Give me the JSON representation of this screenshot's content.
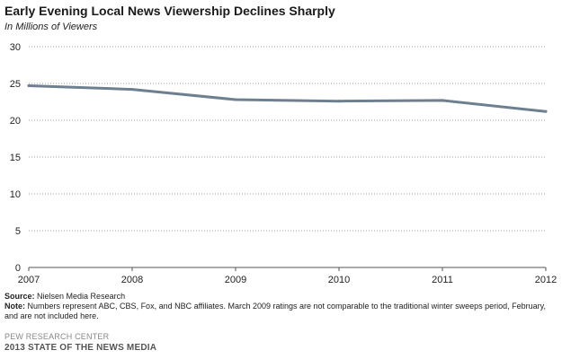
{
  "header": {
    "title": "Early Evening Local News Viewership Declines Sharply",
    "subtitle": "In Millions of Viewers"
  },
  "chart_data": {
    "type": "line",
    "categories": [
      "2007",
      "2008",
      "2009",
      "2010",
      "2011",
      "2012"
    ],
    "series": [
      {
        "values": [
          24.7,
          24.2,
          22.8,
          22.6,
          22.7,
          21.2
        ],
        "color": "#6e8090"
      }
    ],
    "ylim": [
      0,
      30
    ],
    "yticks": [
      0,
      5,
      10,
      15,
      20,
      25,
      30
    ],
    "grid": "horizontal-dotted"
  },
  "notes": {
    "source_label": "Source:",
    "source_text": "Nielsen Media Research",
    "note_label": "Note:",
    "note_text": "Numbers represent ABC, CBS, Fox, and NBC affiliates. March 2009 ratings are not comparable to the traditional winter sweeps period, February, and are not included here."
  },
  "footer": {
    "org": "PEW RESEARCH CENTER",
    "report": "2013 STATE OF THE NEWS MEDIA"
  }
}
